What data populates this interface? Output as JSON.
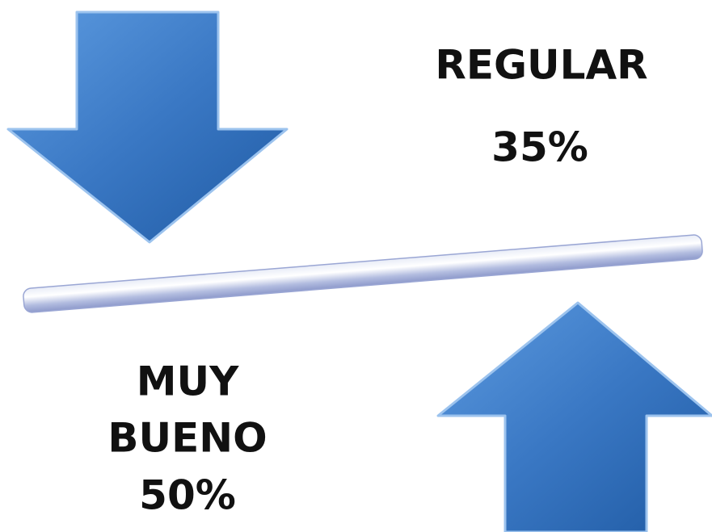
{
  "top": {
    "label": "REGULAR",
    "value": "35%"
  },
  "bottom": {
    "label_lines": [
      "MUY",
      "BUENO"
    ],
    "value": "50%"
  }
}
